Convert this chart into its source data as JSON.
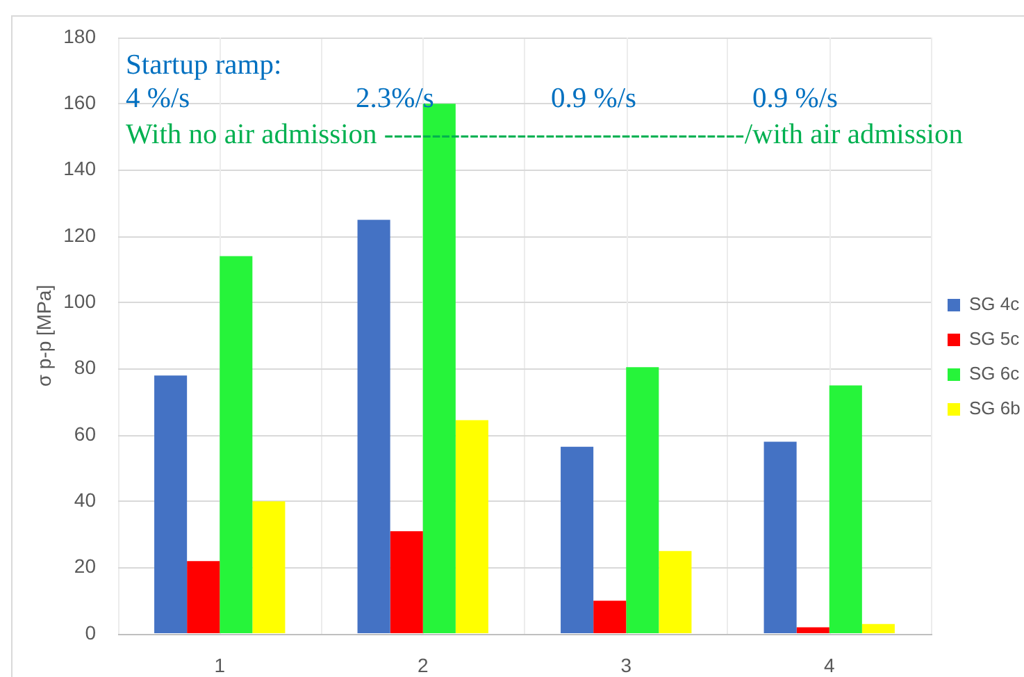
{
  "chart_data": {
    "type": "bar",
    "categories": [
      "1",
      "2",
      "3",
      "4"
    ],
    "series": [
      {
        "name": "SG 4c",
        "color": "#4472c4",
        "values": [
          78,
          125,
          56.5,
          58
        ]
      },
      {
        "name": "SG 5c",
        "color": "#ff0000",
        "values": [
          22,
          31,
          10,
          2
        ]
      },
      {
        "name": "SG 6c",
        "color": "#26f43a",
        "values": [
          114,
          160,
          80.5,
          75
        ]
      },
      {
        "name": "SG 6b",
        "color": "#ffff00",
        "values": [
          40,
          64.5,
          25,
          3
        ]
      }
    ],
    "ylabel": "σ p-p [MPa]",
    "ylim": [
      0,
      180
    ],
    "yticks": [
      0,
      20,
      40,
      60,
      80,
      100,
      120,
      140,
      160,
      180
    ],
    "grid": true,
    "legend": "right",
    "annotations": [
      "Startup ramp:",
      "4 %/s",
      "2.3%/s",
      "0.9 %/s",
      "0.9 %/s",
      "With no air admission --------------------------------------/with air admission"
    ]
  }
}
